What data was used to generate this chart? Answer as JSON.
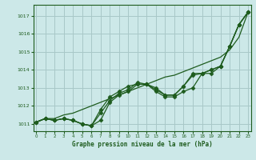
{
  "title": "Graphe pression niveau de la mer (hPa)",
  "bg_color": "#cce8e8",
  "grid_color": "#a8c8c8",
  "line_color": "#1e5c1e",
  "xlim": [
    -0.3,
    23.3
  ],
  "ylim": [
    1010.6,
    1017.6
  ],
  "yticks": [
    1011,
    1012,
    1013,
    1014,
    1015,
    1016,
    1017
  ],
  "xticks": [
    0,
    1,
    2,
    3,
    4,
    5,
    6,
    7,
    8,
    9,
    10,
    11,
    12,
    13,
    14,
    15,
    16,
    17,
    18,
    19,
    20,
    21,
    22,
    23
  ],
  "line_smooth": [
    1011.1,
    1011.3,
    1011.3,
    1011.5,
    1011.6,
    1011.8,
    1012.0,
    1012.2,
    1012.4,
    1012.6,
    1012.8,
    1013.0,
    1013.2,
    1013.4,
    1013.6,
    1013.7,
    1013.9,
    1014.1,
    1014.3,
    1014.5,
    1014.7,
    1015.1,
    1015.8,
    1017.2
  ],
  "line1": [
    1011.1,
    1011.3,
    1011.2,
    1011.3,
    1011.2,
    1011.0,
    1010.9,
    1011.2,
    1012.2,
    1012.6,
    1012.8,
    1013.2,
    1013.2,
    1012.8,
    1012.5,
    1012.5,
    1012.8,
    1013.0,
    1013.8,
    1013.8,
    1014.2,
    1015.3,
    1016.5,
    1017.2
  ],
  "line2": [
    1011.1,
    1011.3,
    1011.2,
    1011.3,
    1011.2,
    1011.0,
    1010.9,
    1011.6,
    1012.3,
    1012.7,
    1012.9,
    1013.3,
    1013.2,
    1012.9,
    1012.6,
    1012.6,
    1013.1,
    1013.7,
    1013.8,
    1014.0,
    1014.2,
    1015.3,
    1016.5,
    1017.2
  ],
  "line3": [
    1011.1,
    1011.3,
    1011.2,
    1011.3,
    1011.2,
    1011.0,
    1010.9,
    1011.8,
    1012.5,
    1012.8,
    1013.1,
    1013.2,
    1013.2,
    1013.0,
    1012.6,
    1012.6,
    1013.1,
    1013.8,
    1013.8,
    1014.0,
    1014.2,
    1015.3,
    1016.5,
    1017.2
  ]
}
